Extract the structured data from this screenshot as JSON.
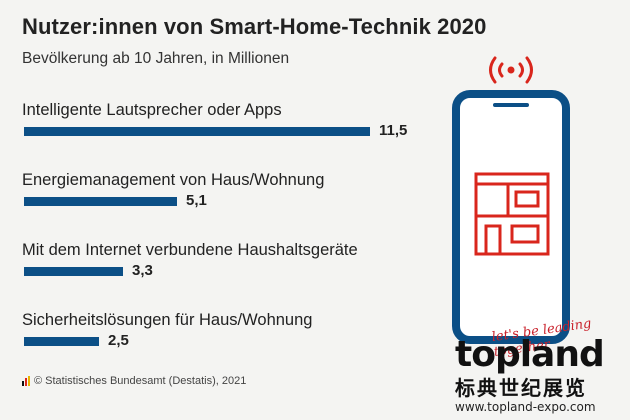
{
  "header": {
    "title": "Nutzer:innen von Smart-Home-Technik 2020",
    "subtitle": "Bevölkerung ab 10 Jahren, in Millionen"
  },
  "chart_data": {
    "type": "bar",
    "orientation": "horizontal",
    "title": "Nutzer:innen von Smart-Home-Technik 2020",
    "subtitle": "Bevölkerung ab 10 Jahren, in Millionen",
    "categories": [
      "Intelligente Lautsprecher oder Apps",
      "Energiemanagement von Haus/Wohnung",
      "Mit dem Internet verbundene Haushaltsgeräte",
      "Sicherheitslösungen für Haus/Wohnung"
    ],
    "values": [
      11.5,
      5.1,
      3.3,
      2.5
    ],
    "value_labels": [
      "11,5",
      "5,1",
      "3,3",
      "2,5"
    ],
    "bar_color": "#0b4f86",
    "xlim": [
      0,
      11.5
    ],
    "grid": false,
    "legend": "none"
  },
  "source": {
    "text": "© Statistisches Bundesamt (Destatis), 2021",
    "logo_colors": [
      "#111111",
      "#d9261c",
      "#e8b400"
    ]
  },
  "illustration": {
    "icon": "smartphone-smart-home-icon",
    "phone_color": "#0b4f86",
    "house_color": "#d9261c",
    "signal_color": "#d9261c"
  },
  "watermark": {
    "slogan": "let's be leading together",
    "name": "topland",
    "chinese": "标典世纪展览",
    "url": "www.topland-expo.com",
    "accent": "#c9202a"
  }
}
